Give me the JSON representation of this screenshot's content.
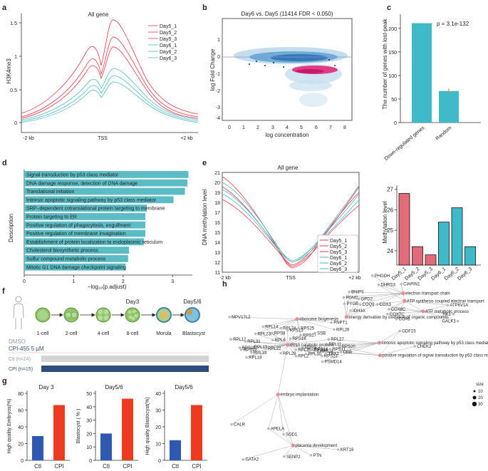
{
  "panel_labels": [
    "a",
    "b",
    "c",
    "d",
    "e",
    "f",
    "g",
    "h"
  ],
  "colors": {
    "red": "#e03a48",
    "cyan": "#4ab9c7",
    "teal": "#5bbcc6",
    "bar_red": "#e36a78",
    "bar_teal": "#3fbac8",
    "g_blue": "#2f58b0",
    "g_red": "#ee3a1f",
    "navy": "#2c4e7e",
    "grey": "#d4d4d4",
    "pink": "#e0287a",
    "blue_cloud": "#4a8fc1"
  },
  "panel_a": {
    "title": "All gene",
    "ylabel": "H3K4me3",
    "yticks": [
      "0",
      "0.5",
      "1",
      "1.5"
    ],
    "xticks": [
      "-2 kb",
      "TSS",
      "+2 kb"
    ],
    "legend": [
      "Day5_1",
      "Day5_2",
      "Day5_3",
      "Day6_1",
      "Day6_2",
      "Day6_3"
    ]
  },
  "panel_b": {
    "title": "Day6 vs. Day5 (11414 FDR < 0.050)",
    "xlabel": "log concentration",
    "ylabel": "log Fold Change",
    "xticks": [
      "0",
      "1",
      "2",
      "3",
      "4",
      "5",
      "6",
      "7",
      "8"
    ],
    "yticks": [
      "1",
      "0",
      "-1",
      "-2",
      "-3",
      "-4"
    ]
  },
  "chart_data": [
    {
      "type": "bar",
      "id": "c",
      "categories": [
        "Down-regulated genes",
        "Random"
      ],
      "values": [
        211,
        67
      ],
      "error": [
        0,
        5
      ],
      "ylabel": "The number of genes with lost-peak",
      "yticks": [
        "0",
        "50",
        "100",
        "150",
        "200"
      ],
      "ylim": [
        0,
        230
      ],
      "annotation": "p = 3.1e-132"
    },
    {
      "type": "bar",
      "id": "d",
      "orientation": "horizontal",
      "categories": [
        "Signal transduction by p53 class mediator",
        "DNA damage response, detection of DNA damage",
        "Translational initiation",
        "Intrinsic apoptotic signaling pathway by p53 class mediator",
        "SRP−dependent cotranslational protein targeting to membrane",
        "Protein targeting to ER",
        "Positive regulation of phagocytosis, engulfment",
        "Positive regulation of membrane invagination",
        "Establishment of protein localization to endoplasmic reticulum",
        "Cholesterol biosynthetic process",
        "Sulfur compound metabolic process",
        "Mitotic G1 DNA damage checkpoint signaling"
      ],
      "values": [
        3.32,
        3.3,
        3.25,
        3.02,
        2.48,
        2.45,
        2.45,
        2.45,
        2.42,
        2.12,
        2.1,
        2.05
      ],
      "xlabel": "−log₁₀(p.adjust)",
      "ylabel": "Description",
      "xticks": [
        "0",
        "1",
        "2",
        "3"
      ],
      "xlim": [
        0,
        3.4
      ]
    },
    {
      "type": "line",
      "id": "e",
      "title": "All gene",
      "ylabel": "DNA methylation level",
      "yticks": [
        "11",
        "12",
        "13",
        "14",
        "15",
        "16",
        "17",
        "18",
        "19",
        "20",
        "21"
      ],
      "ylim": [
        11,
        21
      ],
      "xticks": [
        "-2 kb",
        "TSS",
        "+2 kb"
      ],
      "legend": [
        "Day5_1",
        "Day5_2",
        "Day5_3",
        "Day6_1",
        "Day6_2",
        "Day6_3"
      ]
    },
    {
      "type": "bar",
      "id": "e_bars",
      "categories": [
        "Day5_1",
        "Day5_2",
        "Day5_3",
        "Day6_1",
        "Day6_2",
        "Day6_3"
      ],
      "values": [
        26.8,
        24.2,
        23.8,
        25.4,
        26.1,
        24.2
      ],
      "ylabel": "Methylation level",
      "yticks": [
        "24",
        "25",
        "26",
        "27"
      ],
      "ylim": [
        23.3,
        27.2
      ]
    },
    {
      "type": "bar",
      "id": "g1",
      "title": "Day 3",
      "categories": [
        "Ctl",
        "CPI"
      ],
      "values": [
        29,
        66
      ],
      "ylabel": "High quality Embryos(%)",
      "yticks": [
        "0",
        "20",
        "40",
        "60",
        "80"
      ],
      "ylim": [
        0,
        80
      ]
    },
    {
      "type": "bar",
      "id": "g2",
      "title": "Day5/6",
      "categories": [
        "Ctl",
        "CPI"
      ],
      "values": [
        20,
        46
      ],
      "ylabel": "Blastocyst ( % )",
      "yticks": [
        "0",
        "10",
        "20",
        "30",
        "40",
        "50"
      ],
      "ylim": [
        0,
        50
      ]
    },
    {
      "type": "bar",
      "id": "g3",
      "title": "Day5/6",
      "categories": [
        "Ctl",
        "CPI"
      ],
      "values": [
        12,
        33
      ],
      "ylabel": "High quality Blastocyst(%)",
      "yticks": [
        "0",
        "10",
        "20",
        "30",
        "40"
      ],
      "ylim": [
        0,
        40
      ]
    }
  ],
  "panel_f": {
    "stages": [
      "1-cell",
      "2-cell",
      "4-cell",
      "8-cell",
      "Morula",
      "Blastocyst"
    ],
    "day_labels": [
      "Day3",
      "Day5/6"
    ],
    "dmso": "DMSO",
    "cpi_dose": "CPI-455 5 μM",
    "ctl_label": "Ctl (n=24)",
    "cpi_label": "CPI (n=15)"
  },
  "panel_h": {
    "size_title": "size",
    "size_values": [
      "10",
      "20",
      "30"
    ],
    "nodes": [
      "PHGDH",
      "DHRS3",
      "CIAPIN1",
      "electron transport chain",
      "ATP synthesis coupled electron transport",
      "PGM2",
      "BNIP3",
      "GPD2",
      "COQ9",
      "COX3",
      "ATP6V1A",
      "PYGB",
      "IDH3A",
      "energy derivation by oxidation of organic compounds",
      "ATP metabolic process",
      "HK1",
      "GALK1",
      "COX6C",
      "COX7C",
      "COA6",
      "MPV17L2",
      "ribosome biogenesis",
      "PNPT1",
      "RPL14",
      "RPL7A",
      "RPS13",
      "RPS25",
      "RPL26",
      "RPL23A",
      "RPS8",
      "RPS27",
      "SSB",
      "RPL12",
      "RPL31",
      "RPL6",
      "RPS16",
      "RPL27",
      "RPL11",
      "RPS15",
      "rRNA catabolic process",
      "RPL13",
      "RPS19",
      "RPL22",
      "RPS9",
      "RPL35A",
      "RPS14",
      "RPL18",
      "RPL19",
      "RPL29",
      "RPL2",
      "RPS23",
      "PSMD14",
      "UBB",
      "RPS20",
      "RPS24",
      "intrinsic apoptotic signaling pathway by p53 class mediator",
      "GDF15",
      "CHEK2",
      "positive regulation of signal transduction by p53 class mediator",
      "embryo implantation",
      "CALR",
      "APELA",
      "SOD1",
      "placenta development",
      "GATA2",
      "SENP2",
      "PTN",
      "KRT19",
      "EIF2S1",
      "RPS11",
      "RPL30",
      "YBX1"
    ]
  }
}
